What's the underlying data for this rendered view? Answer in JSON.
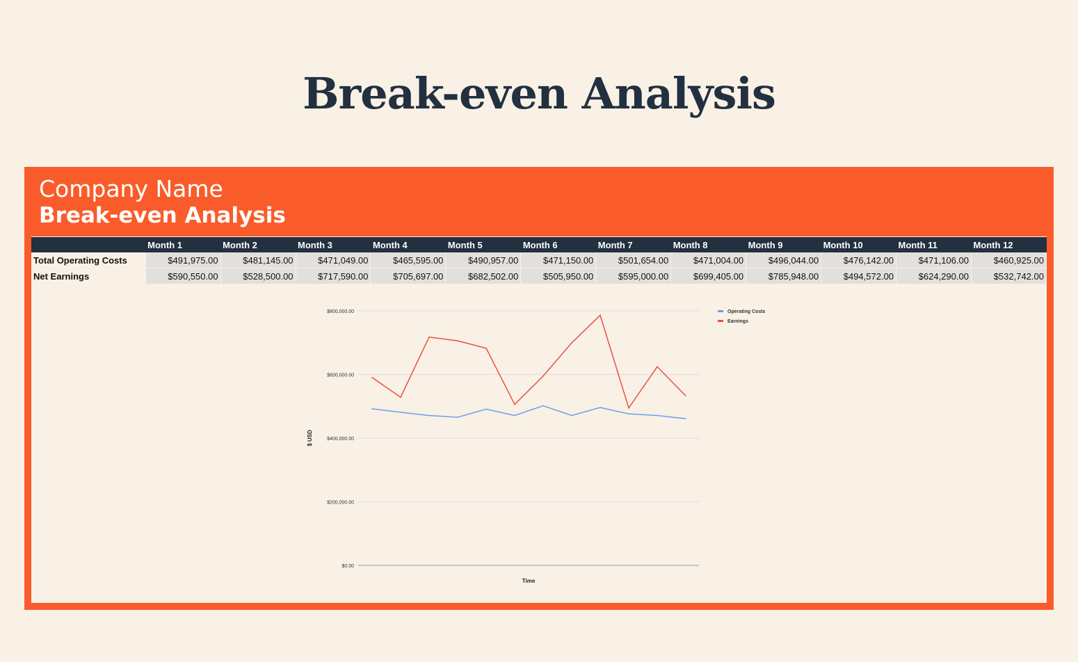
{
  "page_title": "Break-even Analysis",
  "card": {
    "company": "Company Name",
    "subtitle": "Break-even Analysis"
  },
  "table": {
    "headers": [
      "Month 1",
      "Month 2",
      "Month 3",
      "Month 4",
      "Month 5",
      "Month 6",
      "Month 7",
      "Month 8",
      "Month 9",
      "Month 10",
      "Month 11",
      "Month 12"
    ],
    "rows": [
      {
        "label": "Total Operating Costs",
        "values": [
          "$491,975.00",
          "$481,145.00",
          "$471,049.00",
          "$465,595.00",
          "$490,957.00",
          "$471,150.00",
          "$501,654.00",
          "$471,004.00",
          "$496,044.00",
          "$476,142.00",
          "$471,106.00",
          "$460,925.00"
        ]
      },
      {
        "label": "Net Earnings",
        "values": [
          "$590,550.00",
          "$528,500.00",
          "$717,590.00",
          "$705,697.00",
          "$682,502.00",
          "$505,950.00",
          "$595,000.00",
          "$699,405.00",
          "$785,948.00",
          "$494,572.00",
          "$624,290.00",
          "$532,742.00"
        ]
      }
    ]
  },
  "chart_data": {
    "type": "line",
    "xlabel": "Time",
    "ylabel": "$ USD",
    "ylim": [
      0,
      800000
    ],
    "yticks": [
      "$0.00",
      "$200,000.00",
      "$400,000.00",
      "$600,000.00",
      "$800,000.00"
    ],
    "x": [
      1,
      2,
      3,
      4,
      5,
      6,
      7,
      8,
      9,
      10,
      11,
      12
    ],
    "legend_position": "right",
    "series": [
      {
        "name": "Operating Costs",
        "color": "#6d9eeb",
        "values": [
          491975,
          481145,
          471049,
          465595,
          490957,
          471150,
          501654,
          471004,
          496044,
          476142,
          471106,
          460925
        ]
      },
      {
        "name": "Earnings",
        "color": "#ea4f43",
        "values": [
          590550,
          528500,
          717590,
          705697,
          682502,
          505950,
          595000,
          699405,
          785948,
          494572,
          624290,
          532742
        ]
      }
    ]
  }
}
